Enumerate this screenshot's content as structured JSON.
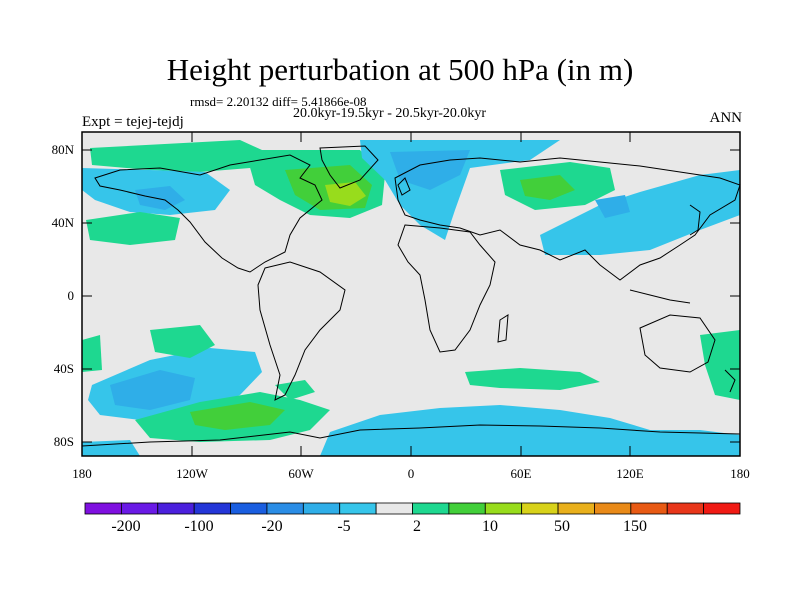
{
  "title": "Height perturbation at 500 hPa (in m)",
  "stats": "rmsd= 2.20132 diff= 5.41866e-08",
  "period": "20.0kyr-19.5kyr - 20.5kyr-20.0kyr",
  "experiment": "Expt = tejej-tejdj",
  "season": "ANN",
  "lat_ticks": [
    "80N",
    "40N",
    "0",
    "40S",
    "80S"
  ],
  "lon_ticks": [
    "180",
    "120W",
    "60W",
    "0",
    "60E",
    "120E",
    "180"
  ],
  "colorbar": {
    "colors": [
      "#7f10e0",
      "#6a1ae6",
      "#4b20dd",
      "#2436d8",
      "#1a5ee0",
      "#2a8de6",
      "#2faee8",
      "#36c5ea",
      "#e8e8e8",
      "#1ed890",
      "#42cf3a",
      "#98dc1c",
      "#d8d21a",
      "#e9b01c",
      "#e98a18",
      "#e85a14",
      "#e8361a",
      "#f01a14"
    ],
    "labels": [
      "-200",
      "-100",
      "-20",
      "-5",
      "2",
      "10",
      "50",
      "150"
    ]
  }
}
